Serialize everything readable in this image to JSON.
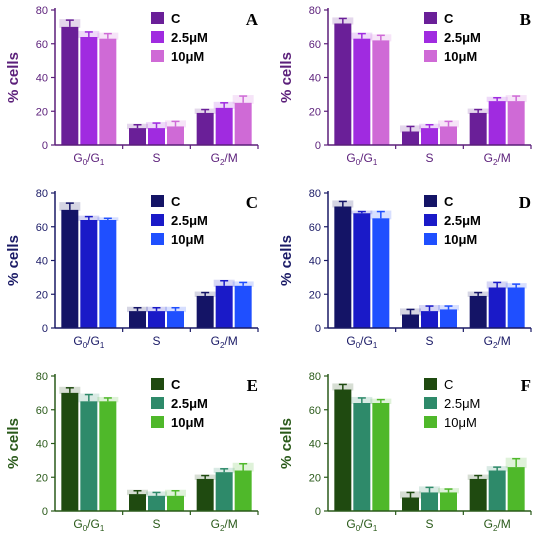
{
  "chart_data": [
    {
      "type": "bar",
      "panel": "A",
      "ylabel": "% cells",
      "ylim": [
        0,
        80
      ],
      "yticks": [
        0,
        20,
        40,
        60,
        80
      ],
      "axis_color": "#5b1f7a",
      "legend_bold": true,
      "categories": [
        {
          "main": "G",
          "sub1": "0",
          "mid": "/G",
          "sub2": "1"
        },
        {
          "main": "S"
        },
        {
          "main": "G",
          "sub1": "2",
          "mid": "/M"
        }
      ],
      "series": [
        {
          "name": "C",
          "color": "#6a1f98",
          "values": [
            70,
            10,
            19
          ],
          "errors": [
            4,
            2,
            2
          ]
        },
        {
          "name": "2.5μM",
          "color": "#a02be0",
          "values": [
            64,
            10,
            22
          ],
          "errors": [
            3,
            3,
            3
          ]
        },
        {
          "name": "10μM",
          "color": "#cf6ad6",
          "values": [
            63,
            11,
            25
          ],
          "errors": [
            3,
            3,
            4
          ]
        }
      ]
    },
    {
      "type": "bar",
      "panel": "B",
      "ylabel": "% cells",
      "ylim": [
        0,
        80
      ],
      "yticks": [
        0,
        20,
        40,
        60,
        80
      ],
      "axis_color": "#5b1f7a",
      "legend_bold": true,
      "categories": [
        {
          "main": "G",
          "sub1": "0",
          "mid": "/G",
          "sub2": "1"
        },
        {
          "main": "S"
        },
        {
          "main": "G",
          "sub1": "2",
          "mid": "/M"
        }
      ],
      "series": [
        {
          "name": "C",
          "color": "#6a1f98",
          "values": [
            72,
            8,
            19
          ],
          "errors": [
            3,
            3,
            2
          ]
        },
        {
          "name": "2.5μM",
          "color": "#a02be0",
          "values": [
            63,
            10,
            26
          ],
          "errors": [
            3,
            2,
            2
          ]
        },
        {
          "name": "10μM",
          "color": "#cf6ad6",
          "values": [
            62,
            11,
            26
          ],
          "errors": [
            3,
            3,
            3
          ]
        }
      ]
    },
    {
      "type": "bar",
      "panel": "C",
      "ylabel": "% cells",
      "ylim": [
        0,
        80
      ],
      "yticks": [
        0,
        20,
        40,
        60,
        80
      ],
      "axis_color": "#1a1a66",
      "legend_bold": true,
      "categories": [
        {
          "main": "G",
          "sub1": "0",
          "mid": "/G",
          "sub2": "1"
        },
        {
          "main": "S"
        },
        {
          "main": "G",
          "sub1": "2",
          "mid": "/M"
        }
      ],
      "series": [
        {
          "name": "C",
          "color": "#141466",
          "values": [
            70,
            10,
            19
          ],
          "errors": [
            4,
            2,
            2
          ]
        },
        {
          "name": "2.5μM",
          "color": "#1a1ac8",
          "values": [
            64,
            10,
            25
          ],
          "errors": [
            2,
            2,
            3
          ]
        },
        {
          "name": "10μM",
          "color": "#1f4fff",
          "values": [
            64,
            10,
            25
          ],
          "errors": [
            1,
            2,
            2
          ]
        }
      ]
    },
    {
      "type": "bar",
      "panel": "D",
      "ylabel": "% cells",
      "ylim": [
        0,
        80
      ],
      "yticks": [
        0,
        20,
        40,
        60,
        80
      ],
      "axis_color": "#1a1a66",
      "legend_bold": true,
      "categories": [
        {
          "main": "G",
          "sub1": "0",
          "mid": "/G",
          "sub2": "1"
        },
        {
          "main": "S"
        },
        {
          "main": "G",
          "sub1": "2",
          "mid": "/M"
        }
      ],
      "series": [
        {
          "name": "C",
          "color": "#141466",
          "values": [
            72,
            8,
            19
          ],
          "errors": [
            3,
            3,
            2
          ]
        },
        {
          "name": "2.5μM",
          "color": "#1a1ac8",
          "values": [
            68,
            10,
            24
          ],
          "errors": [
            1,
            3,
            3
          ]
        },
        {
          "name": "10μM",
          "color": "#1f4fff",
          "values": [
            65,
            11,
            24
          ],
          "errors": [
            4,
            2,
            2
          ]
        }
      ]
    },
    {
      "type": "bar",
      "panel": "E",
      "ylabel": "% cells",
      "ylim": [
        0,
        80
      ],
      "yticks": [
        0,
        20,
        40,
        60,
        80
      ],
      "axis_color": "#2a5a1a",
      "legend_bold": true,
      "categories": [
        {
          "main": "G",
          "sub1": "0",
          "mid": "/G",
          "sub2": "1"
        },
        {
          "main": "S"
        },
        {
          "main": "G",
          "sub1": "2",
          "mid": "/M"
        }
      ],
      "series": [
        {
          "name": "C",
          "color": "#1f4a10",
          "values": [
            70,
            10,
            19
          ],
          "errors": [
            3,
            2,
            2
          ]
        },
        {
          "name": "2.5μM",
          "color": "#2e8a6a",
          "values": [
            65,
            9,
            23
          ],
          "errors": [
            4,
            2,
            2
          ]
        },
        {
          "name": "10μM",
          "color": "#4fb82a",
          "values": [
            65,
            9,
            24
          ],
          "errors": [
            2,
            3,
            4
          ]
        }
      ]
    },
    {
      "type": "bar",
      "panel": "F",
      "ylabel": "% cells",
      "ylim": [
        0,
        80
      ],
      "yticks": [
        0,
        20,
        40,
        60,
        80
      ],
      "axis_color": "#2a5a1a",
      "legend_bold": false,
      "categories": [
        {
          "main": "G",
          "sub1": "0",
          "mid": "/G",
          "sub2": "1"
        },
        {
          "main": "S"
        },
        {
          "main": "G",
          "sub1": "2",
          "mid": "/M"
        }
      ],
      "series": [
        {
          "name": "C",
          "color": "#1f4a10",
          "values": [
            72,
            8,
            19
          ],
          "errors": [
            3,
            3,
            2
          ]
        },
        {
          "name": "2.5μM",
          "color": "#2e8a6a",
          "values": [
            64,
            11,
            24
          ],
          "errors": [
            3,
            3,
            2
          ]
        },
        {
          "name": "10μM",
          "color": "#4fb82a",
          "values": [
            64,
            11,
            26
          ],
          "errors": [
            2,
            2,
            5
          ]
        }
      ]
    }
  ]
}
